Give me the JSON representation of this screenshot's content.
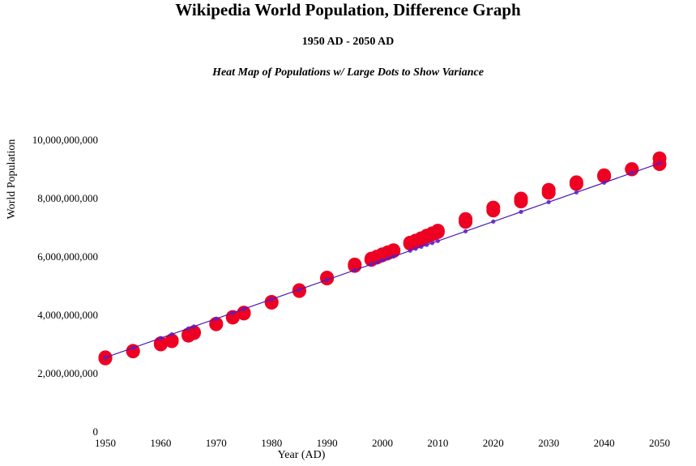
{
  "chart_data": {
    "type": "scatter",
    "title": "Wikipedia World Population, Difference Graph",
    "subtitle": "1950 AD - 2050 AD",
    "subtitle2": "Heat Map of Populations w/ Large Dots to Show Variance",
    "xlabel": "Year (AD)",
    "ylabel": "World Population",
    "xlim": [
      1950,
      2050
    ],
    "ylim": [
      0,
      10000000000
    ],
    "x_ticks": [
      1950,
      1960,
      1970,
      1980,
      1990,
      2000,
      2010,
      2020,
      2030,
      2040,
      2050
    ],
    "y_ticks": [
      0,
      2000000000,
      4000000000,
      6000000000,
      8000000000,
      10000000000
    ],
    "x_tick_labels": [
      "1950",
      "1960",
      "1970",
      "1980",
      "1990",
      "2000",
      "2010",
      "2020",
      "2030",
      "2040",
      "2050"
    ],
    "y_tick_labels": [
      "0",
      "2,000,000,000",
      "4,000,000,000",
      "6,000,000,000",
      "8,000,000,000",
      "10,000,000,000"
    ],
    "grid": false,
    "colors": {
      "dots": "#ee0022",
      "line": "#4a1ab0",
      "marker": "#5a20c8"
    },
    "series": [
      {
        "values": [
          [
            1950,
            2520000000
          ],
          [
            1950,
            2560000000
          ],
          [
            1955,
            2760000000
          ],
          [
            1955,
            2780000000
          ],
          [
            1960,
            3000000000
          ],
          [
            1960,
            3040000000
          ],
          [
            1962,
            3110000000
          ],
          [
            1962,
            3140000000
          ],
          [
            1965,
            3300000000
          ],
          [
            1965,
            3340000000
          ],
          [
            1966,
            3390000000
          ],
          [
            1966,
            3420000000
          ],
          [
            1970,
            3690000000
          ],
          [
            1970,
            3710000000
          ],
          [
            1973,
            3920000000
          ],
          [
            1973,
            3940000000
          ],
          [
            1975,
            4060000000
          ],
          [
            1975,
            4090000000
          ],
          [
            1980,
            4430000000
          ],
          [
            1980,
            4460000000
          ],
          [
            1985,
            4830000000
          ],
          [
            1985,
            4860000000
          ],
          [
            1990,
            5260000000
          ],
          [
            1990,
            5290000000
          ],
          [
            1995,
            5690000000
          ],
          [
            1995,
            5740000000
          ],
          [
            1998,
            5900000000
          ],
          [
            1998,
            5940000000
          ],
          [
            1999,
            5980000000
          ],
          [
            1999,
            6010000000
          ],
          [
            2000,
            6060000000
          ],
          [
            2000,
            6090000000
          ],
          [
            2001,
            6130000000
          ],
          [
            2001,
            6160000000
          ],
          [
            2002,
            6200000000
          ],
          [
            2002,
            6230000000
          ],
          [
            2005,
            6450000000
          ],
          [
            2005,
            6490000000
          ],
          [
            2006,
            6520000000
          ],
          [
            2006,
            6560000000
          ],
          [
            2007,
            6600000000
          ],
          [
            2007,
            6640000000
          ],
          [
            2008,
            6690000000
          ],
          [
            2008,
            6730000000
          ],
          [
            2009,
            6770000000
          ],
          [
            2009,
            6810000000
          ],
          [
            2010,
            6850000000
          ],
          [
            2010,
            6900000000
          ],
          [
            2015,
            7200000000
          ],
          [
            2015,
            7300000000
          ],
          [
            2020,
            7590000000
          ],
          [
            2020,
            7690000000
          ],
          [
            2025,
            7900000000
          ],
          [
            2025,
            8000000000
          ],
          [
            2030,
            8200000000
          ],
          [
            2030,
            8300000000
          ],
          [
            2035,
            8500000000
          ],
          [
            2035,
            8560000000
          ],
          [
            2040,
            8760000000
          ],
          [
            2040,
            8800000000
          ],
          [
            2045,
            9000000000
          ],
          [
            2045,
            9010000000
          ],
          [
            2050,
            9180000000
          ],
          [
            2050,
            9380000000
          ]
        ]
      }
    ],
    "trend": [
      [
        1950,
        2550000000
      ],
      [
        2050,
        9210000000
      ]
    ]
  }
}
